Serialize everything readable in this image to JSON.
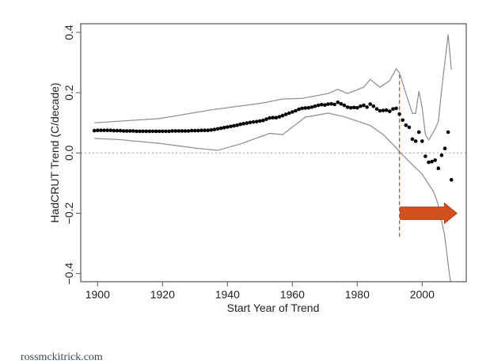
{
  "chart_data": {
    "type": "scatter",
    "title": "",
    "xlabel": "Start Year of Trend",
    "ylabel": "HadCRUT Trend (C/decade)",
    "xlim": [
      1895,
      2012
    ],
    "ylim": [
      -0.43,
      0.43
    ],
    "x_ticks": [
      1900,
      1920,
      1940,
      1960,
      1980,
      2000
    ],
    "x_tick_labels": [
      "1900",
      "1920",
      "1940",
      "1960",
      "1980",
      "2000"
    ],
    "y_ticks": [
      -0.4,
      -0.2,
      0.0,
      0.2,
      0.4
    ],
    "y_tick_labels": [
      "−0.4",
      "−0.2",
      "0.0",
      "0.2",
      "0.4"
    ],
    "grid": false,
    "reference_line_y": 0.0,
    "marker_line_x": 1993,
    "marker_line_range": [
      -0.28,
      0.26
    ],
    "arrow": {
      "from_x": 1993,
      "to_x": 2010,
      "y": -0.2,
      "direction": "right"
    },
    "colors": {
      "points": "#000000",
      "bands": "#8c8c8c",
      "marker_line": "#c0603a",
      "arrow": "#d2501e",
      "zero_line": "#999999"
    },
    "series": [
      {
        "name": "trend",
        "kind": "points",
        "start_year": 1899,
        "values": [
          0.074,
          0.075,
          0.075,
          0.075,
          0.075,
          0.075,
          0.074,
          0.074,
          0.074,
          0.073,
          0.073,
          0.073,
          0.073,
          0.072,
          0.072,
          0.072,
          0.072,
          0.072,
          0.072,
          0.072,
          0.072,
          0.072,
          0.072,
          0.072,
          0.073,
          0.073,
          0.073,
          0.073,
          0.073,
          0.073,
          0.074,
          0.074,
          0.074,
          0.075,
          0.075,
          0.075,
          0.076,
          0.078,
          0.08,
          0.082,
          0.084,
          0.086,
          0.088,
          0.09,
          0.092,
          0.095,
          0.097,
          0.099,
          0.101,
          0.103,
          0.104,
          0.106,
          0.108,
          0.112,
          0.116,
          0.117,
          0.117,
          0.12,
          0.124,
          0.128,
          0.132,
          0.136,
          0.14,
          0.145,
          0.148,
          0.149,
          0.15,
          0.152,
          0.155,
          0.158,
          0.16,
          0.159,
          0.162,
          0.163,
          0.161,
          0.168,
          0.163,
          0.158,
          0.152,
          0.15,
          0.151,
          0.15,
          0.155,
          0.158,
          0.152,
          0.162,
          0.155,
          0.146,
          0.14,
          0.141,
          0.142,
          0.138,
          0.146,
          0.148,
          0.129,
          0.109,
          0.092,
          0.085,
          0.046,
          0.039,
          0.069,
          0.039,
          -0.011,
          -0.031,
          -0.029,
          -0.024,
          -0.051,
          -0.008,
          0.015,
          0.069,
          -0.089
        ]
      },
      {
        "name": "upper bound",
        "kind": "line",
        "x": [
          1899,
          1906,
          1919,
          1935,
          1951,
          1957,
          1963,
          1971,
          1974,
          1977,
          1982,
          1984,
          1987,
          1990,
          1992,
          1993,
          1995,
          1997,
          1998,
          1999,
          2000,
          2001,
          2002,
          2004,
          2005,
          2006,
          2008,
          2009
        ],
        "y": [
          0.1,
          0.105,
          0.114,
          0.143,
          0.166,
          0.179,
          0.181,
          0.197,
          0.211,
          0.197,
          0.218,
          0.244,
          0.218,
          0.24,
          0.279,
          0.266,
          0.197,
          0.131,
          0.131,
          0.205,
          0.15,
          0.061,
          0.043,
          0.079,
          0.105,
          0.21,
          0.393,
          0.276
        ]
      },
      {
        "name": "lower bound",
        "kind": "line",
        "x": [
          1899,
          1906,
          1919,
          1931,
          1937,
          1944,
          1953,
          1957,
          1964,
          1971,
          1976,
          1984,
          1988,
          1992,
          1993,
          1997,
          2000,
          2001.6,
          2003.6,
          2004.8,
          2006.9,
          2008.5,
          2009
        ],
        "y": [
          0.048,
          0.045,
          0.032,
          0.015,
          0.009,
          0.03,
          0.065,
          0.061,
          0.119,
          0.132,
          0.12,
          0.091,
          0.061,
          0.017,
          0.004,
          -0.039,
          -0.07,
          -0.097,
          -0.131,
          -0.167,
          -0.272,
          -0.41,
          -0.44
        ]
      }
    ]
  },
  "footer": {
    "credit": "rossmckitrick.com"
  }
}
